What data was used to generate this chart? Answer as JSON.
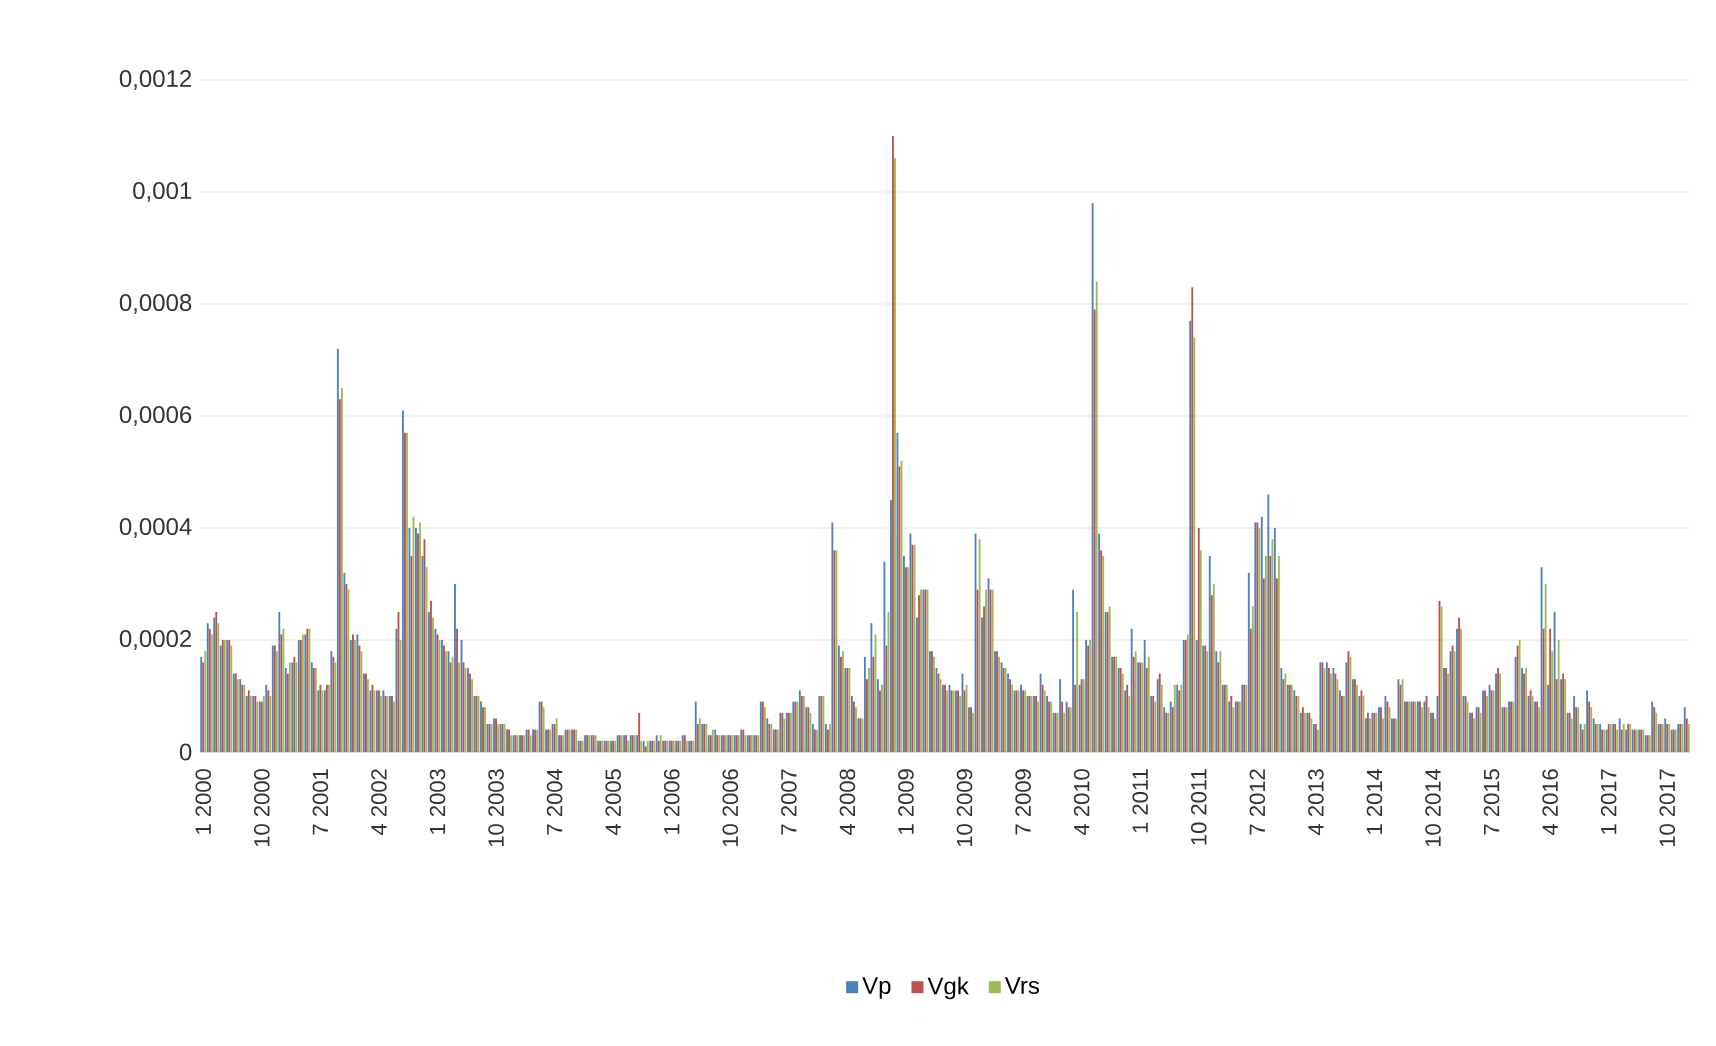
{
  "chart_data": {
    "type": "bar",
    "categories": [
      "1 2000",
      null,
      null,
      null,
      null,
      null,
      null,
      null,
      null,
      "10 2000",
      null,
      null,
      null,
      null,
      null,
      null,
      null,
      null,
      "7 2001",
      null,
      null,
      null,
      null,
      null,
      null,
      null,
      null,
      "4 2002",
      null,
      null,
      null,
      null,
      null,
      null,
      null,
      null,
      "1 2003",
      null,
      null,
      null,
      null,
      null,
      null,
      null,
      null,
      "10 2003",
      null,
      null,
      null,
      null,
      null,
      null,
      null,
      null,
      "7 2004",
      null,
      null,
      null,
      null,
      null,
      null,
      null,
      null,
      "4 2005",
      null,
      null,
      null,
      null,
      null,
      null,
      null,
      null,
      "1 2006",
      null,
      null,
      null,
      null,
      null,
      null,
      null,
      null,
      "10 2006",
      null,
      null,
      null,
      null,
      null,
      null,
      null,
      null,
      "7 2007",
      null,
      null,
      null,
      null,
      null,
      null,
      null,
      null,
      "4 2008",
      null,
      null,
      null,
      null,
      null,
      null,
      null,
      null,
      "1 2009",
      null,
      null,
      null,
      null,
      null,
      null,
      null,
      null,
      "10 2009",
      null,
      null,
      null,
      null,
      null,
      null,
      null,
      null,
      "7 2009",
      null,
      null,
      null,
      null,
      null,
      null,
      null,
      null,
      "4 2010",
      null,
      null,
      null,
      null,
      null,
      null,
      null,
      null,
      "1 2011",
      null,
      null,
      null,
      null,
      null,
      null,
      null,
      null,
      "10 2011",
      null,
      null,
      null,
      null,
      null,
      null,
      null,
      null,
      "7 2012",
      null,
      null,
      null,
      null,
      null,
      null,
      null,
      null,
      "4 2013",
      null,
      null,
      null,
      null,
      null,
      null,
      null,
      null,
      "1 2014",
      null,
      null,
      null,
      null,
      null,
      null,
      null,
      null,
      "10 2014",
      null,
      null,
      null,
      null,
      null,
      null,
      null,
      null,
      "7 2015",
      null,
      null,
      null,
      null,
      null,
      null,
      null,
      null,
      "4 2016",
      null,
      null,
      null,
      null,
      null,
      null,
      null,
      null,
      "1 2017",
      null,
      null,
      null,
      null,
      null,
      null,
      null,
      null,
      "10 2017",
      null,
      null,
      null
    ],
    "series": [
      {
        "name": "Vp",
        "color": "#4f81bd",
        "values": [
          0.00017,
          0.00023,
          0.00024,
          0.00019,
          0.0002,
          0.00014,
          0.00013,
          0.0001,
          0.0001,
          9e-05,
          0.00012,
          0.00019,
          0.00025,
          0.00015,
          0.00016,
          0.0002,
          0.00021,
          0.00016,
          0.00011,
          0.00011,
          0.00018,
          0.00072,
          0.00032,
          0.0002,
          0.00021,
          0.00014,
          0.00011,
          0.00011,
          0.00011,
          0.0001,
          0.00022,
          0.00061,
          0.0004,
          0.0004,
          0.00035,
          0.00025,
          0.00022,
          0.0002,
          0.00018,
          0.0003,
          0.0002,
          0.00015,
          0.0001,
          9e-05,
          5e-05,
          6e-05,
          5e-05,
          4e-05,
          3e-05,
          3e-05,
          4e-05,
          4e-05,
          9e-05,
          4e-05,
          5e-05,
          3e-05,
          4e-05,
          4e-05,
          2e-05,
          3e-05,
          3e-05,
          2e-05,
          2e-05,
          2e-05,
          3e-05,
          3e-05,
          3e-05,
          3e-05,
          2e-05,
          2e-05,
          3e-05,
          2e-05,
          2e-05,
          2e-05,
          3e-05,
          2e-05,
          9e-05,
          5e-05,
          3e-05,
          4e-05,
          3e-05,
          3e-05,
          3e-05,
          4e-05,
          3e-05,
          3e-05,
          9e-05,
          6e-05,
          4e-05,
          7e-05,
          7e-05,
          9e-05,
          0.00011,
          8e-05,
          5e-05,
          0.0001,
          5e-05,
          0.00041,
          0.00019,
          0.00015,
          0.0001,
          6e-05,
          0.00017,
          0.00023,
          0.00013,
          0.00034,
          0.00045,
          0.00057,
          0.00035,
          0.00039,
          0.00024,
          0.00029,
          0.00018,
          0.00015,
          0.00012,
          0.00012,
          0.00011,
          0.00014,
          8e-05,
          0.00039,
          0.00024,
          0.00031,
          0.00018,
          0.00016,
          0.00014,
          0.00011,
          0.00012,
          0.0001,
          0.0001,
          0.00014,
          0.0001,
          7e-05,
          0.00013,
          9e-05,
          0.00029,
          0.00012,
          0.0002,
          0.00098,
          0.00039,
          0.00025,
          0.00017,
          0.00015,
          0.00011,
          0.00022,
          0.00016,
          0.0002,
          0.0001,
          0.00013,
          8e-05,
          9e-05,
          0.00012,
          0.0002,
          0.00077,
          0.0002,
          0.00019,
          0.00035,
          0.00018,
          0.00012,
          9e-05,
          9e-05,
          0.00012,
          0.00032,
          0.00041,
          0.00042,
          0.00046,
          0.0004,
          0.00015,
          0.00012,
          0.00011,
          7e-05,
          7e-05,
          5e-05,
          0.00016,
          0.00016,
          0.00015,
          0.00011,
          0.00016,
          0.00013,
          0.0001,
          6e-05,
          7e-05,
          8e-05,
          0.0001,
          6e-05,
          0.00013,
          9e-05,
          9e-05,
          9e-05,
          9e-05,
          7e-05,
          0.0001,
          0.00015,
          0.00018,
          0.00022,
          0.0001,
          7e-05,
          8e-05,
          0.00011,
          0.00012,
          0.00014,
          8e-05,
          9e-05,
          0.00017,
          0.00015,
          0.0001,
          9e-05,
          0.00033,
          0.00012,
          0.00025,
          0.00013,
          7e-05,
          0.0001,
          5e-05,
          0.00011,
          6e-05,
          5e-05,
          4e-05,
          5e-05,
          6e-05,
          4e-05,
          4e-05,
          4e-05,
          3e-05,
          9e-05,
          5e-05,
          6e-05,
          4e-05,
          5e-05,
          8e-05
        ]
      },
      {
        "name": "Vgk",
        "color": "#c0504d",
        "values": [
          0.00016,
          0.00022,
          0.00025,
          0.0002,
          0.0002,
          0.00014,
          0.00012,
          0.00011,
          0.0001,
          9e-05,
          0.00011,
          0.00019,
          0.00021,
          0.00014,
          0.00017,
          0.0002,
          0.00022,
          0.00015,
          0.00012,
          0.00012,
          0.00017,
          0.00063,
          0.0003,
          0.00021,
          0.00019,
          0.00014,
          0.00012,
          0.00011,
          0.0001,
          0.0001,
          0.00025,
          0.00057,
          0.00035,
          0.00039,
          0.00038,
          0.00027,
          0.00021,
          0.00019,
          0.00016,
          0.00022,
          0.00016,
          0.00014,
          0.0001,
          8e-05,
          5e-05,
          6e-05,
          5e-05,
          4e-05,
          3e-05,
          3e-05,
          4e-05,
          4e-05,
          9e-05,
          4e-05,
          5e-05,
          3e-05,
          4e-05,
          4e-05,
          2e-05,
          3e-05,
          3e-05,
          2e-05,
          2e-05,
          2e-05,
          3e-05,
          3e-05,
          3e-05,
          7e-05,
          1e-05,
          2e-05,
          2e-05,
          2e-05,
          2e-05,
          2e-05,
          3e-05,
          2e-05,
          5e-05,
          5e-05,
          3e-05,
          3e-05,
          3e-05,
          3e-05,
          3e-05,
          4e-05,
          3e-05,
          3e-05,
          9e-05,
          5e-05,
          4e-05,
          7e-05,
          7e-05,
          9e-05,
          0.0001,
          8e-05,
          4e-05,
          0.0001,
          4e-05,
          0.00036,
          0.00017,
          0.00015,
          9e-05,
          6e-05,
          0.00013,
          0.00017,
          0.00011,
          0.00019,
          0.0011,
          0.00051,
          0.00033,
          0.00037,
          0.00028,
          0.00029,
          0.00018,
          0.00014,
          0.00012,
          0.00011,
          0.00011,
          0.00011,
          8e-05,
          0.00029,
          0.00026,
          0.00029,
          0.00018,
          0.00015,
          0.00013,
          0.00011,
          0.00011,
          0.0001,
          0.0001,
          0.00012,
          9e-05,
          7e-05,
          9e-05,
          8e-05,
          0.00012,
          0.00013,
          0.00019,
          0.00079,
          0.00036,
          0.00025,
          0.00017,
          0.00015,
          0.00012,
          0.00017,
          0.00016,
          0.00015,
          0.0001,
          0.00014,
          7e-05,
          8e-05,
          0.00011,
          0.0002,
          0.00083,
          0.0004,
          0.00019,
          0.00028,
          0.00016,
          0.00012,
          0.0001,
          9e-05,
          0.00012,
          0.00022,
          0.00041,
          0.00031,
          0.00035,
          0.00031,
          0.00013,
          0.00012,
          0.0001,
          8e-05,
          7e-05,
          5e-05,
          0.00016,
          0.00015,
          0.00014,
          0.0001,
          0.00018,
          0.00013,
          0.00011,
          7e-05,
          7e-05,
          8e-05,
          9e-05,
          6e-05,
          0.00012,
          9e-05,
          9e-05,
          9e-05,
          0.0001,
          7e-05,
          0.00027,
          0.00015,
          0.00019,
          0.00024,
          0.0001,
          7e-05,
          8e-05,
          0.00011,
          0.00011,
          0.00015,
          8e-05,
          9e-05,
          0.00019,
          0.00014,
          0.00011,
          9e-05,
          0.00022,
          0.00022,
          0.00013,
          0.00014,
          7e-05,
          8e-05,
          4e-05,
          9e-05,
          5e-05,
          4e-05,
          5e-05,
          5e-05,
          4e-05,
          5e-05,
          4e-05,
          4e-05,
          3e-05,
          8e-05,
          5e-05,
          5e-05,
          4e-05,
          5e-05,
          6e-05
        ]
      },
      {
        "name": "Vrs",
        "color": "#9bbb59",
        "values": [
          0.00018,
          0.00021,
          0.00023,
          0.0002,
          0.00019,
          0.00013,
          0.00012,
          0.0001,
          9e-05,
          0.0001,
          0.0001,
          0.00018,
          0.00022,
          0.00016,
          0.00016,
          0.00021,
          0.00022,
          0.00015,
          0.00011,
          0.00012,
          0.00016,
          0.00065,
          0.00029,
          0.0002,
          0.00018,
          0.00013,
          0.00011,
          0.0001,
          0.0001,
          9e-05,
          0.0002,
          0.00057,
          0.00042,
          0.00041,
          0.00033,
          0.00024,
          0.0002,
          0.00018,
          0.00017,
          0.00016,
          0.00015,
          0.00013,
          0.0001,
          8e-05,
          5e-05,
          5e-05,
          5e-05,
          3e-05,
          3e-05,
          3e-05,
          3e-05,
          4e-05,
          8e-05,
          4e-05,
          6e-05,
          3e-05,
          4e-05,
          4e-05,
          2e-05,
          3e-05,
          3e-05,
          2e-05,
          2e-05,
          2e-05,
          3e-05,
          2e-05,
          3e-05,
          2e-05,
          2e-05,
          2e-05,
          3e-05,
          2e-05,
          2e-05,
          2e-05,
          2e-05,
          2e-05,
          6e-05,
          5e-05,
          4e-05,
          3e-05,
          3e-05,
          3e-05,
          3e-05,
          3e-05,
          3e-05,
          3e-05,
          8e-05,
          5e-05,
          4e-05,
          6e-05,
          7e-05,
          9e-05,
          0.0001,
          7e-05,
          4e-05,
          0.0001,
          5e-05,
          0.00036,
          0.00018,
          0.00015,
          8e-05,
          6e-05,
          0.00015,
          0.00021,
          0.00012,
          0.00025,
          0.00106,
          0.00052,
          0.00033,
          0.00037,
          0.00029,
          0.00029,
          0.00017,
          0.00013,
          0.00011,
          0.00011,
          0.0001,
          0.00012,
          7e-05,
          0.00038,
          0.00029,
          0.00029,
          0.00017,
          0.00015,
          0.00012,
          0.00011,
          0.00011,
          0.0001,
          9e-05,
          0.00011,
          9e-05,
          7e-05,
          7e-05,
          8e-05,
          0.00025,
          0.00013,
          0.0002,
          0.00084,
          0.00035,
          0.00026,
          0.00017,
          0.00014,
          0.0001,
          0.00018,
          0.00016,
          0.00017,
          9e-05,
          0.00012,
          7e-05,
          0.00012,
          0.00012,
          0.00021,
          0.00074,
          0.00036,
          0.00018,
          0.0003,
          0.00018,
          0.00012,
          8e-05,
          9e-05,
          0.00012,
          0.00026,
          0.0004,
          0.00035,
          0.00038,
          0.00035,
          0.00014,
          0.00012,
          0.0001,
          7e-05,
          6e-05,
          4e-05,
          0.00015,
          0.00014,
          0.00013,
          0.0001,
          0.00017,
          0.00012,
          0.0001,
          6e-05,
          7e-05,
          6e-05,
          8e-05,
          6e-05,
          0.00013,
          9e-05,
          9e-05,
          8e-05,
          8e-05,
          6e-05,
          0.00026,
          0.00014,
          0.00018,
          0.00022,
          9e-05,
          6e-05,
          7e-05,
          0.0001,
          0.00011,
          0.00014,
          8e-05,
          9e-05,
          0.0002,
          0.00015,
          0.0001,
          8e-05,
          0.0003,
          0.00018,
          0.0002,
          0.00013,
          6e-05,
          8e-05,
          5e-05,
          8e-05,
          5e-05,
          4e-05,
          5e-05,
          4e-05,
          5e-05,
          5e-05,
          4e-05,
          4e-05,
          3e-05,
          7e-05,
          5e-05,
          5e-05,
          4e-05,
          5e-05,
          5e-05
        ]
      }
    ],
    "ylim": [
      0,
      0.0012
    ],
    "yticks": [
      {
        "value": 0,
        "label": "0"
      },
      {
        "value": 0.0002,
        "label": "0,0002"
      },
      {
        "value": 0.0004,
        "label": "0,0004"
      },
      {
        "value": 0.0006,
        "label": "0,0006"
      },
      {
        "value": 0.0008,
        "label": "0,0008"
      },
      {
        "value": 0.001,
        "label": "0,001"
      },
      {
        "value": 0.0012,
        "label": "0,0012"
      }
    ],
    "grid": "y",
    "legend": "bottom"
  }
}
